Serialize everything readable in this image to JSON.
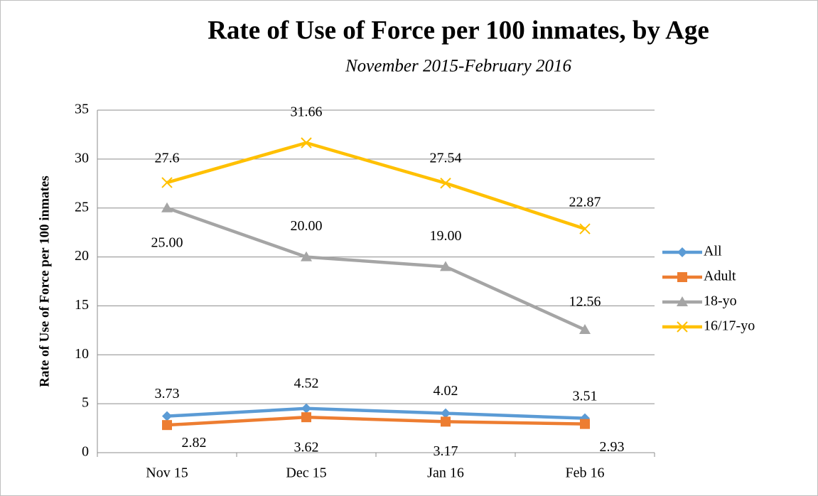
{
  "chart_data": {
    "type": "line",
    "title": "Rate of Use of Force per 100 inmates, by Age",
    "subtitle": "November 2015-February 2016",
    "y_label": "Rate of Use of Force per 100 inmates",
    "categories": [
      "Nov 15",
      "Dec 15",
      "Jan 16",
      "Feb 16"
    ],
    "series": [
      {
        "name": "All",
        "color": "#5b9bd5",
        "marker": "diamond",
        "values": [
          3.73,
          4.52,
          4.02,
          3.51
        ]
      },
      {
        "name": "Adult",
        "color": "#ed7d31",
        "marker": "square",
        "values": [
          2.82,
          3.62,
          3.17,
          2.93
        ]
      },
      {
        "name": "18-yo",
        "color": "#a5a5a5",
        "marker": "triangle",
        "values": [
          25,
          20,
          19,
          12.56
        ],
        "value_labels": [
          "25.00",
          "20.00",
          "19.00",
          "12.56"
        ]
      },
      {
        "name": "16/17-yo",
        "color": "#ffc000",
        "marker": "x",
        "values": [
          27.6,
          31.66,
          27.54,
          22.87
        ]
      }
    ],
    "ylim": [
      0,
      35
    ],
    "yticks": [
      0,
      5,
      10,
      15,
      20,
      25,
      30,
      35
    ],
    "grid": true,
    "legend": "right"
  }
}
